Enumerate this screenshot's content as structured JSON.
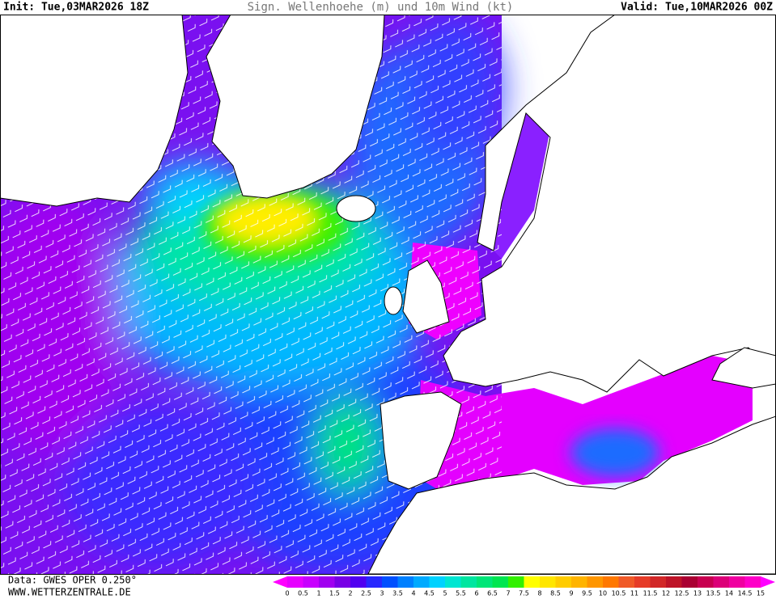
{
  "header": {
    "init": "Init: Tue,03MAR2026 18Z",
    "title": "Sign. Wellenhoehe (m) und 10m Wind (kt)",
    "valid": "Valid: Tue,10MAR2026 00Z"
  },
  "footer": {
    "source": "Data: GWES OPER 0.250°",
    "website": "WWW.WETTERZENTRALE.DE"
  },
  "legend": {
    "labels": [
      0,
      0.5,
      1,
      1.5,
      2,
      2.5,
      3,
      3.5,
      4,
      4.5,
      5,
      5.5,
      6,
      6.5,
      7,
      7.5,
      8,
      8.5,
      9,
      9.5,
      10,
      10.5,
      11,
      11.5,
      12,
      12.5,
      13,
      13.5,
      14,
      14.5,
      15
    ],
    "colors": [
      "#ff00ff",
      "#e600ff",
      "#c800ff",
      "#a000f0",
      "#7800e6",
      "#5000f0",
      "#2828ff",
      "#0050ff",
      "#0080ff",
      "#00aaff",
      "#00d2ff",
      "#00e6d2",
      "#00e6a0",
      "#00e678",
      "#00e650",
      "#32f000",
      "#ffff00",
      "#ffe600",
      "#ffcc00",
      "#ffb400",
      "#ff9600",
      "#ff7800",
      "#f05a28",
      "#e63c28",
      "#d22828",
      "#be1428",
      "#aa0032",
      "#c80050",
      "#dc0078",
      "#f000a0",
      "#ff00c8",
      "#ff00ff"
    ]
  }
}
